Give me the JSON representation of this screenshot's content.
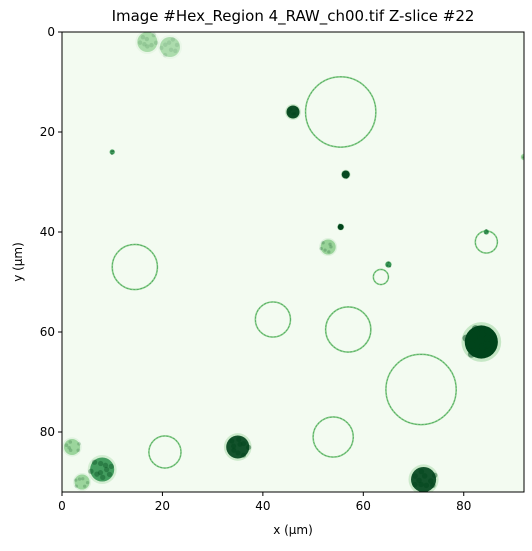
{
  "title": "Image #Hex_Region 4_RAW_ch00.tif Z-slice #22",
  "xlabel": "x ($\\mu$m)",
  "ylabel": "y ($\\mu$m)",
  "xlabel_display": "x (μm)",
  "ylabel_display": "y (μm)",
  "colormap": "Greens",
  "axes": {
    "xlim": [
      0,
      92
    ],
    "ylim": [
      92,
      0
    ],
    "xticks": [
      0,
      20,
      40,
      60,
      80
    ],
    "yticks": [
      0,
      20,
      40,
      60,
      80
    ],
    "grid": false
  },
  "image": {
    "content": "fluorescence microscopy slice; green rings and bright clusters on pale background",
    "features": [
      {
        "kind": "ring",
        "cx": 55.5,
        "cy": 16,
        "r": 7.0
      },
      {
        "kind": "ring",
        "cx": 71.5,
        "cy": 71.5,
        "r": 7.0
      },
      {
        "kind": "ring",
        "cx": 14.5,
        "cy": 47,
        "r": 4.5
      },
      {
        "kind": "ring",
        "cx": 57,
        "cy": 59.5,
        "r": 4.5
      },
      {
        "kind": "ring",
        "cx": 42,
        "cy": 57.5,
        "r": 3.5
      },
      {
        "kind": "ring",
        "cx": 54,
        "cy": 81,
        "r": 4.0
      },
      {
        "kind": "ring",
        "cx": 20.5,
        "cy": 84,
        "r": 3.2
      },
      {
        "kind": "ring",
        "cx": 84.5,
        "cy": 42,
        "r": 2.2
      },
      {
        "kind": "ring",
        "cx": 63.5,
        "cy": 49,
        "r": 1.5
      },
      {
        "kind": "blob",
        "cx": 83.5,
        "cy": 62,
        "r": 3.3,
        "intensity": 1.0
      },
      {
        "kind": "blob",
        "cx": 35,
        "cy": 83,
        "r": 2.3,
        "intensity": 0.85
      },
      {
        "kind": "blob",
        "cx": 8,
        "cy": 87.5,
        "r": 2.4,
        "intensity": 0.7
      },
      {
        "kind": "blob",
        "cx": 72,
        "cy": 89.5,
        "r": 2.5,
        "intensity": 0.85
      },
      {
        "kind": "blob",
        "cx": 46,
        "cy": 16,
        "r": 1.3,
        "intensity": 0.9
      },
      {
        "kind": "blob",
        "cx": 56.5,
        "cy": 28.5,
        "r": 0.8,
        "intensity": 0.95
      },
      {
        "kind": "blob",
        "cx": 55.5,
        "cy": 39,
        "r": 0.6,
        "intensity": 1.0
      },
      {
        "kind": "blob",
        "cx": 65,
        "cy": 46.5,
        "r": 0.6,
        "intensity": 0.8
      },
      {
        "kind": "blob",
        "cx": 53,
        "cy": 43,
        "r": 1.5,
        "intensity": 0.45
      },
      {
        "kind": "blob",
        "cx": 2,
        "cy": 83,
        "r": 1.6,
        "intensity": 0.4
      },
      {
        "kind": "blob",
        "cx": 4,
        "cy": 90,
        "r": 1.5,
        "intensity": 0.4
      },
      {
        "kind": "blob",
        "cx": 17,
        "cy": 2,
        "r": 2.0,
        "intensity": 0.25
      },
      {
        "kind": "blob",
        "cx": 21.5,
        "cy": 3,
        "r": 2.0,
        "intensity": 0.2
      },
      {
        "kind": "blob",
        "cx": 10,
        "cy": 24,
        "r": 0.5,
        "intensity": 0.7
      },
      {
        "kind": "blob",
        "cx": 84.5,
        "cy": 40,
        "r": 0.5,
        "intensity": 0.7
      },
      {
        "kind": "blob",
        "cx": 92,
        "cy": 25,
        "r": 0.6,
        "intensity": 0.5
      }
    ]
  },
  "colors": {
    "dark": "#00441b",
    "mid": "#238b45",
    "light": "#74c476",
    "pale": "#f3fbf1"
  }
}
